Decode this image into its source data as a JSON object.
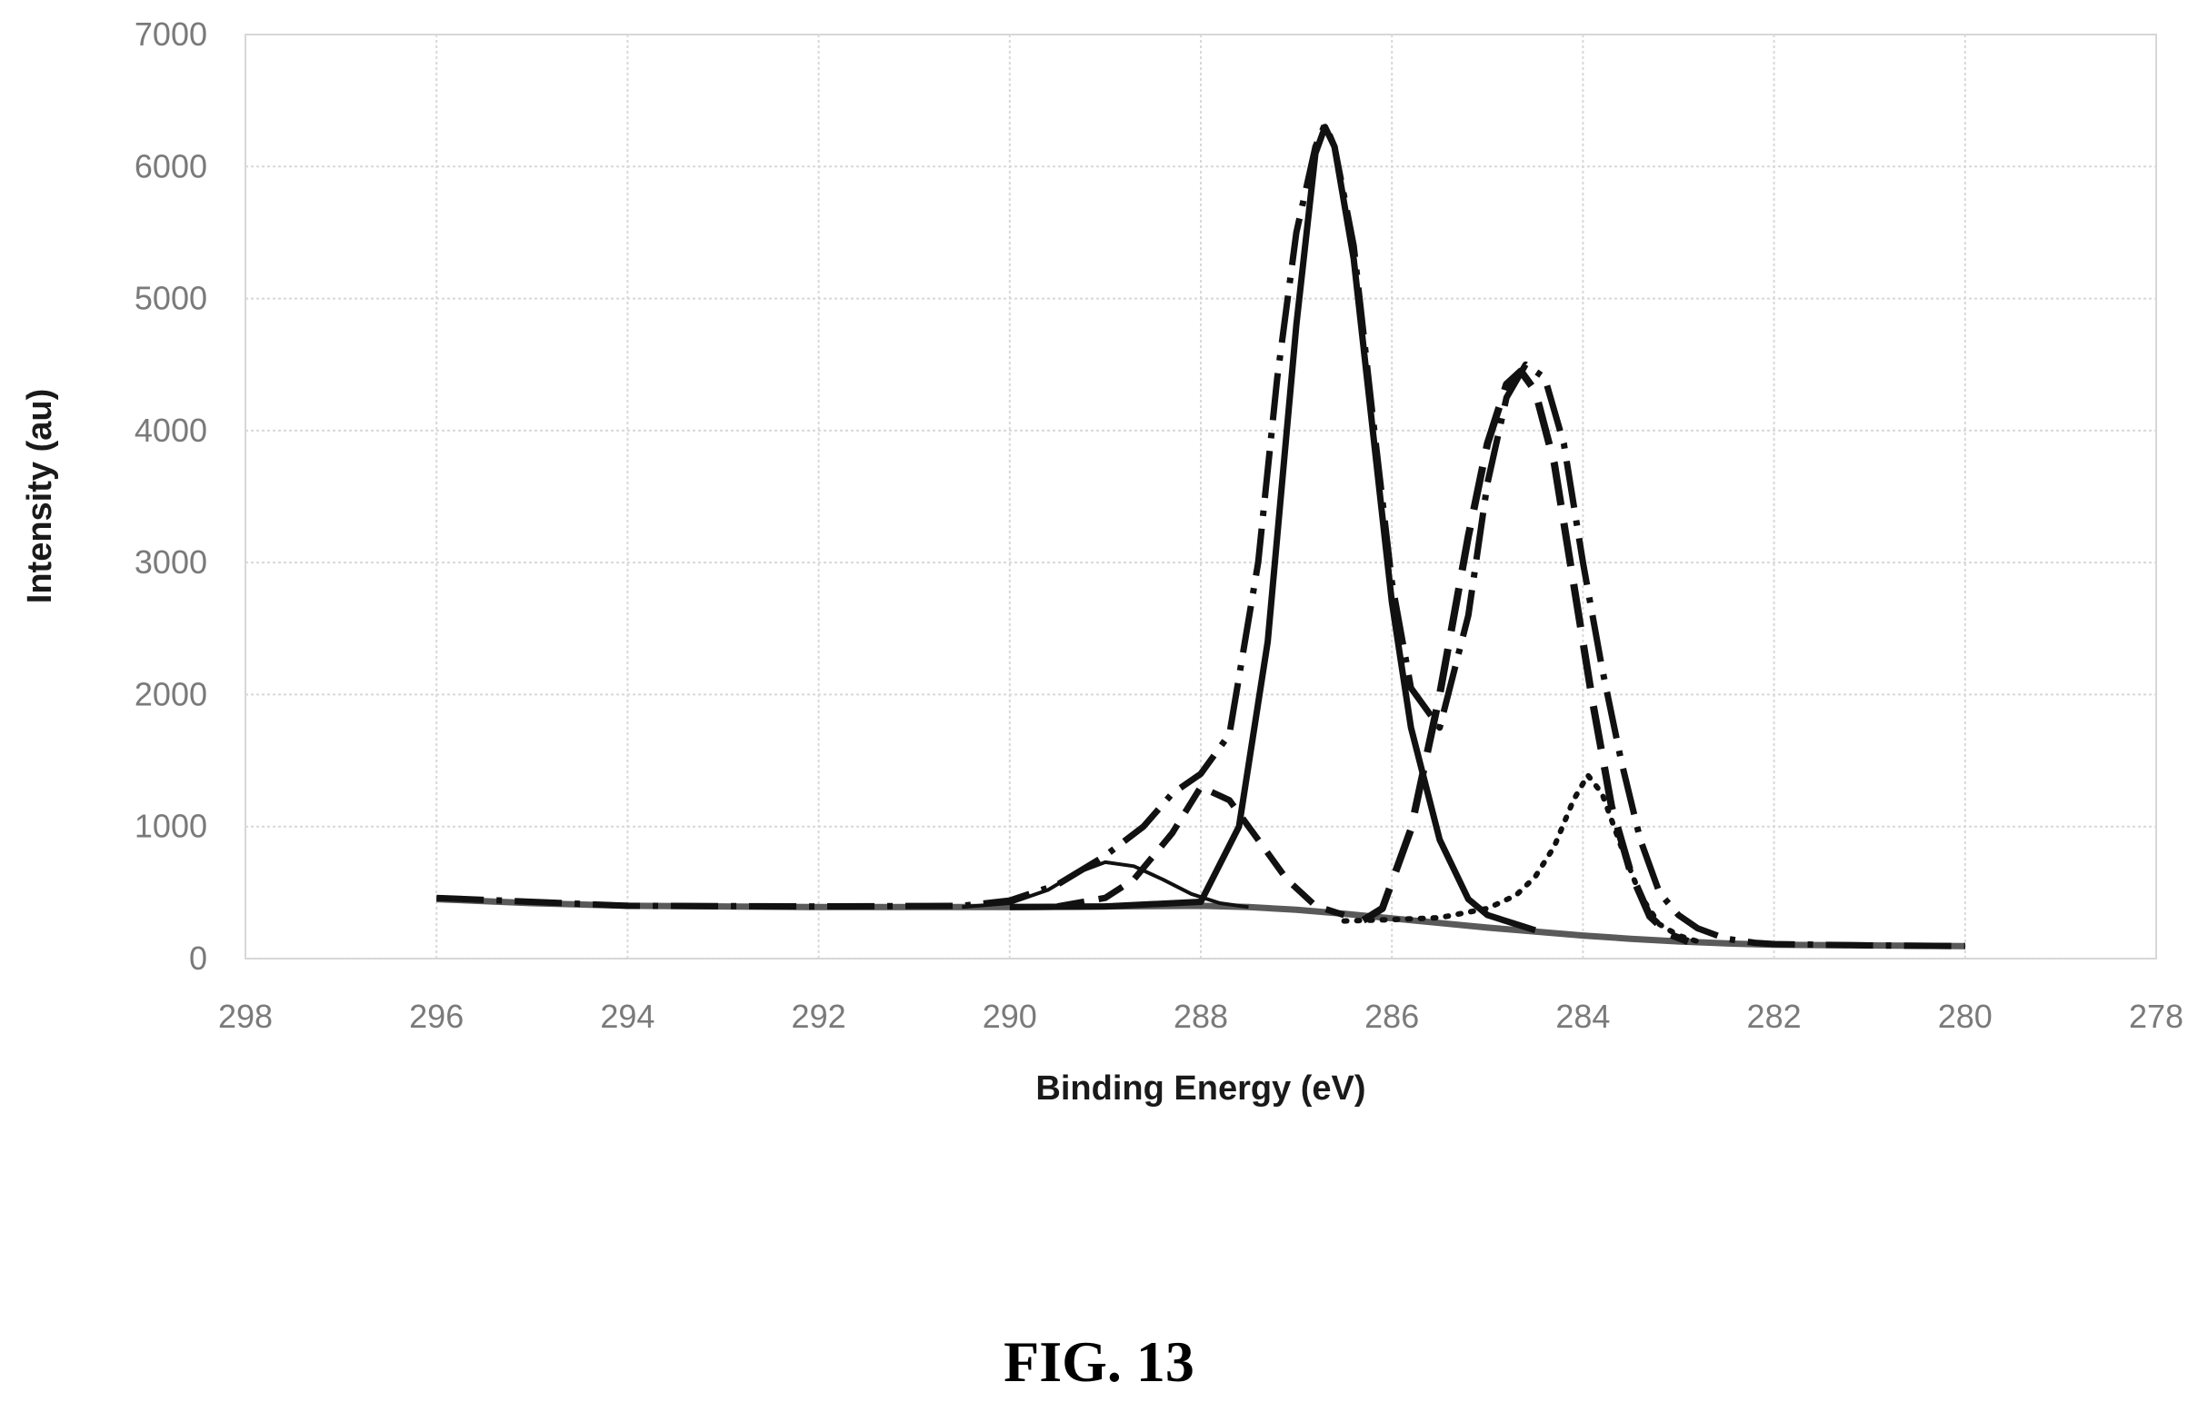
{
  "caption": "FIG. 13",
  "chart_data": {
    "type": "line",
    "xlabel": "Binding Energy (eV)",
    "ylabel": "Intensity (au)",
    "xlim": [
      298,
      278
    ],
    "x_reversed": true,
    "ylim": [
      0,
      7000
    ],
    "x_ticks": [
      298,
      296,
      294,
      292,
      290,
      288,
      286,
      284,
      282,
      280,
      278
    ],
    "y_ticks": [
      0,
      1000,
      2000,
      3000,
      4000,
      5000,
      6000,
      7000
    ],
    "grid": true,
    "legend": "none",
    "series": [
      {
        "style": "background-solid-gray",
        "x": [
          296,
          295,
          294,
          293,
          292,
          291,
          290,
          289,
          288,
          287.5,
          287,
          286.5,
          286,
          285.5,
          285,
          284.5,
          284,
          283.5,
          283,
          282.5,
          282,
          281,
          280
        ],
        "y": [
          450,
          420,
          400,
          395,
          390,
          390,
          390,
          395,
          400,
          390,
          370,
          340,
          305,
          270,
          235,
          205,
          175,
          150,
          130,
          115,
          105,
          100,
          95
        ]
      },
      {
        "style": "solid-thick",
        "x": [
          290,
          289,
          288,
          287.6,
          287.3,
          287,
          286.8,
          286.7,
          286.6,
          286.4,
          286.2,
          286,
          285.8,
          285.5,
          285.2,
          285,
          284.5
        ],
        "y": [
          390,
          395,
          430,
          1000,
          2400,
          4800,
          6100,
          6300,
          6150,
          5300,
          4000,
          2700,
          1750,
          900,
          450,
          330,
          215
        ]
      },
      {
        "style": "solid-thin",
        "x": [
          290.5,
          290,
          289.6,
          289.3,
          289,
          288.7,
          288.4,
          288.1,
          287.8,
          287.5
        ],
        "y": [
          390,
          420,
          520,
          650,
          730,
          700,
          600,
          490,
          420,
          390
        ]
      },
      {
        "style": "dashed",
        "x": [
          289.5,
          289,
          288.7,
          288.3,
          288,
          287.7,
          287.4,
          287.1,
          286.8,
          286.5
        ],
        "y": [
          395,
          460,
          600,
          950,
          1300,
          1200,
          900,
          600,
          400,
          330
        ]
      },
      {
        "style": "long-dash",
        "x": [
          286.3,
          286.1,
          285.8,
          285.5,
          285.2,
          285,
          284.8,
          284.65,
          284.5,
          284.3,
          284.1,
          283.9,
          283.7,
          283.5,
          283.3,
          283.1,
          282.9
        ],
        "y": [
          290,
          380,
          980,
          2000,
          3200,
          3900,
          4350,
          4450,
          4300,
          3750,
          2850,
          1950,
          1150,
          650,
          320,
          185,
          130
        ]
      },
      {
        "style": "dotted",
        "x": [
          286.5,
          286,
          285.5,
          285,
          284.7,
          284.5,
          284.3,
          284.1,
          283.95,
          283.8,
          283.6,
          283.4,
          283.2,
          283,
          282.8
        ],
        "y": [
          285,
          295,
          310,
          380,
          480,
          620,
          850,
          1200,
          1390,
          1250,
          850,
          480,
          260,
          175,
          130
        ]
      },
      {
        "style": "envelope-dash-dot",
        "x": [
          296,
          294,
          292,
          290.5,
          290,
          289.5,
          289,
          288.6,
          288.3,
          288,
          287.7,
          287.4,
          287.2,
          287,
          286.8,
          286.7,
          286.6,
          286.4,
          286.2,
          286,
          285.8,
          285.5,
          285.2,
          285,
          284.8,
          284.6,
          284.4,
          284.2,
          284,
          283.8,
          283.6,
          283.4,
          283.2,
          283,
          282.8,
          282.5,
          282.2,
          282,
          281,
          280
        ],
        "y": [
          460,
          400,
          395,
          400,
          440,
          560,
          780,
          1000,
          1250,
          1400,
          1700,
          3000,
          4400,
          5500,
          6150,
          6320,
          6150,
          5400,
          4100,
          2850,
          2050,
          1750,
          2600,
          3600,
          4250,
          4500,
          4400,
          3900,
          3000,
          2200,
          1500,
          900,
          500,
          330,
          230,
          150,
          120,
          110,
          100,
          95
        ]
      }
    ]
  }
}
